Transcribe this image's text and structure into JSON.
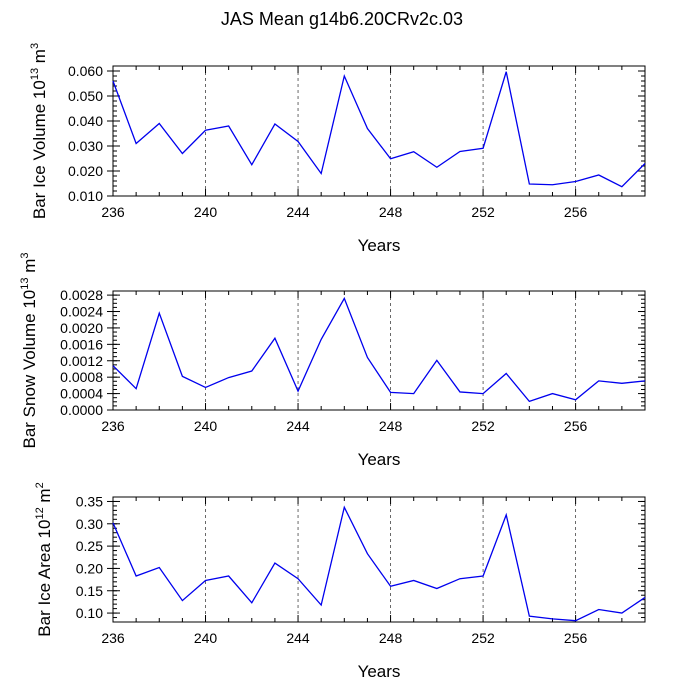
{
  "title": "JAS Mean g14b6.20CRv2c.03",
  "colors": {
    "series": "#0000ee",
    "axis": "#000000",
    "grid": "#444444"
  },
  "chart_data": [
    {
      "type": "line",
      "title": "",
      "xlabel": "Years",
      "ylabel_main": "Bar Ice Volume 10",
      "ylabel_exp": "13",
      "ylabel_unit": " m",
      "ylabel_unit_exp": "3",
      "xlim": [
        236,
        259
      ],
      "ylim": [
        0.01,
        0.062
      ],
      "xticks": [
        236,
        240,
        244,
        248,
        252,
        256
      ],
      "xtick_labels": [
        "236",
        "240",
        "244",
        "248",
        "252",
        "256"
      ],
      "yticks": [
        0.01,
        0.02,
        0.03,
        0.04,
        0.05,
        0.06
      ],
      "ytick_labels": [
        "0.010",
        "0.020",
        "0.030",
        "0.040",
        "0.050",
        "0.060"
      ],
      "yminor_step": 0.002,
      "xgrid": [
        240,
        244,
        248,
        252,
        256
      ],
      "x": [
        236,
        237,
        238,
        239,
        240,
        241,
        242,
        243,
        244,
        245,
        246,
        247,
        248,
        249,
        250,
        251,
        252,
        253,
        254,
        255,
        256,
        257,
        258,
        259
      ],
      "series": [
        {
          "name": "Bar Ice Volume",
          "values": [
            0.056,
            0.031,
            0.039,
            0.027,
            0.0363,
            0.038,
            0.0225,
            0.0388,
            0.0318,
            0.019,
            0.058,
            0.037,
            0.0249,
            0.0277,
            0.0215,
            0.0278,
            0.0291,
            0.0597,
            0.0148,
            0.0145,
            0.0158,
            0.0184,
            0.0137,
            0.023
          ]
        }
      ]
    },
    {
      "type": "line",
      "title": "",
      "xlabel": "Years",
      "ylabel_main": "Bar Snow Volume 10",
      "ylabel_exp": "13",
      "ylabel_unit": " m",
      "ylabel_unit_exp": "3",
      "xlim": [
        236,
        259
      ],
      "ylim": [
        0,
        0.0029
      ],
      "xticks": [
        236,
        240,
        244,
        248,
        252,
        256
      ],
      "xtick_labels": [
        "236",
        "240",
        "244",
        "248",
        "252",
        "256"
      ],
      "yticks": [
        0,
        0.0004,
        0.0008,
        0.0012,
        0.0016,
        0.002,
        0.0024,
        0.0028
      ],
      "ytick_labels": [
        "0.0000",
        "0.0004",
        "0.0008",
        "0.0012",
        "0.0016",
        "0.0020",
        "0.0024",
        "0.0028"
      ],
      "yminor_step": 0.0001,
      "xgrid": [
        240,
        244,
        248,
        252,
        256
      ],
      "x": [
        236,
        237,
        238,
        239,
        240,
        241,
        242,
        243,
        244,
        245,
        246,
        247,
        248,
        249,
        250,
        251,
        252,
        253,
        254,
        255,
        256,
        257,
        258,
        259
      ],
      "series": [
        {
          "name": "Bar Snow Volume",
          "values": [
            0.00108,
            0.00052,
            0.00236,
            0.00082,
            0.00055,
            0.00079,
            0.00095,
            0.00175,
            0.00046,
            0.00172,
            0.00272,
            0.00128,
            0.00043,
            0.0004,
            0.00121,
            0.00044,
            0.0004,
            0.00089,
            0.00021,
            0.0004,
            0.00025,
            0.00071,
            0.00065,
            0.00071
          ]
        }
      ]
    },
    {
      "type": "line",
      "title": "",
      "xlabel": "Years",
      "ylabel_main": "Bar Ice Area 10",
      "ylabel_exp": "12",
      "ylabel_unit": " m",
      "ylabel_unit_exp": "2",
      "xlim": [
        236,
        259
      ],
      "ylim": [
        0.08,
        0.36
      ],
      "xticks": [
        236,
        240,
        244,
        248,
        252,
        256
      ],
      "xtick_labels": [
        "236",
        "240",
        "244",
        "248",
        "252",
        "256"
      ],
      "yticks": [
        0.1,
        0.15,
        0.2,
        0.25,
        0.3,
        0.35
      ],
      "ytick_labels": [
        "0.10",
        "0.15",
        "0.20",
        "0.25",
        "0.30",
        "0.35"
      ],
      "yminor_step": 0.01,
      "xgrid": [
        240,
        244,
        248,
        252,
        256
      ],
      "x": [
        236,
        237,
        238,
        239,
        240,
        241,
        242,
        243,
        244,
        245,
        246,
        247,
        248,
        249,
        250,
        251,
        252,
        253,
        254,
        255,
        256,
        257,
        258,
        259
      ],
      "series": [
        {
          "name": "Bar Ice Area",
          "values": [
            0.302,
            0.183,
            0.202,
            0.128,
            0.173,
            0.183,
            0.123,
            0.212,
            0.177,
            0.118,
            0.337,
            0.233,
            0.16,
            0.173,
            0.155,
            0.177,
            0.183,
            0.32,
            0.093,
            0.087,
            0.083,
            0.108,
            0.1,
            0.135
          ]
        }
      ]
    }
  ]
}
